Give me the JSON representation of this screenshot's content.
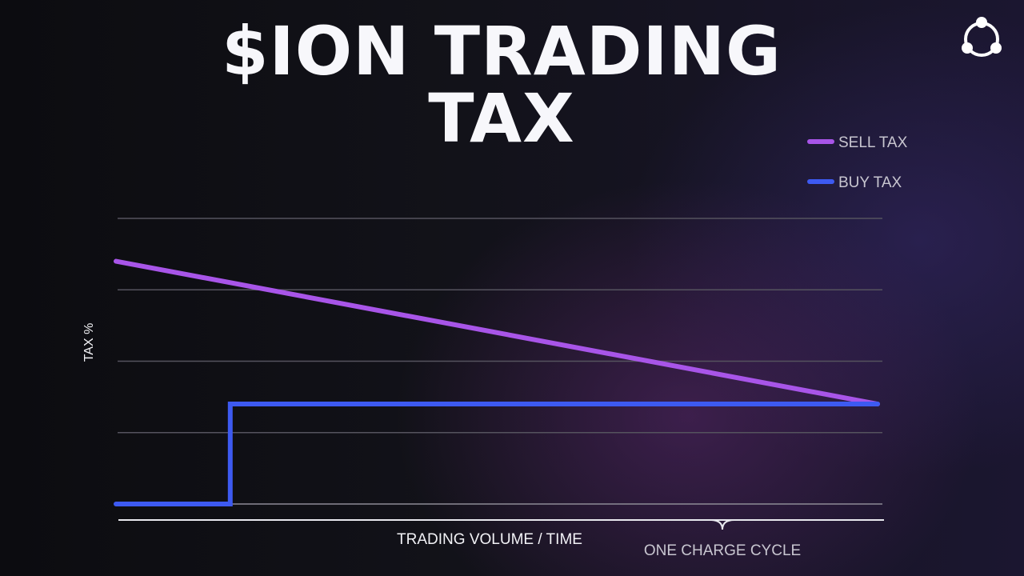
{
  "header": {
    "title_line1": "$ION TRADING",
    "title_line2": "TAX"
  },
  "logo": {
    "icon": "triangle-nodes-logo-icon"
  },
  "chart_data": {
    "type": "line",
    "xlabel": "TRADING VOLUME / TIME",
    "ylabel": "TAX %",
    "xlim": [
      0,
      1
    ],
    "ylim": [
      0,
      4
    ],
    "grid": true,
    "legend_position": "top-right",
    "series": [
      {
        "name": "SELL TAX",
        "color": "#a855e8",
        "x": [
          0,
          1
        ],
        "y": [
          3.4,
          1.4
        ]
      },
      {
        "name": "BUY TAX",
        "color": "#3d5af1",
        "x": [
          0,
          0.15,
          0.15,
          1
        ],
        "y": [
          0,
          0,
          1.4,
          1.4
        ]
      }
    ],
    "annotation": {
      "label": "ONE CHARGE CYCLE",
      "x_range": [
        0,
        1
      ]
    },
    "colors": {
      "grid": "#55535e",
      "axis": "#e8e8ee",
      "text": "#f2f2f6",
      "muted_text": "#c8c6d0"
    }
  }
}
